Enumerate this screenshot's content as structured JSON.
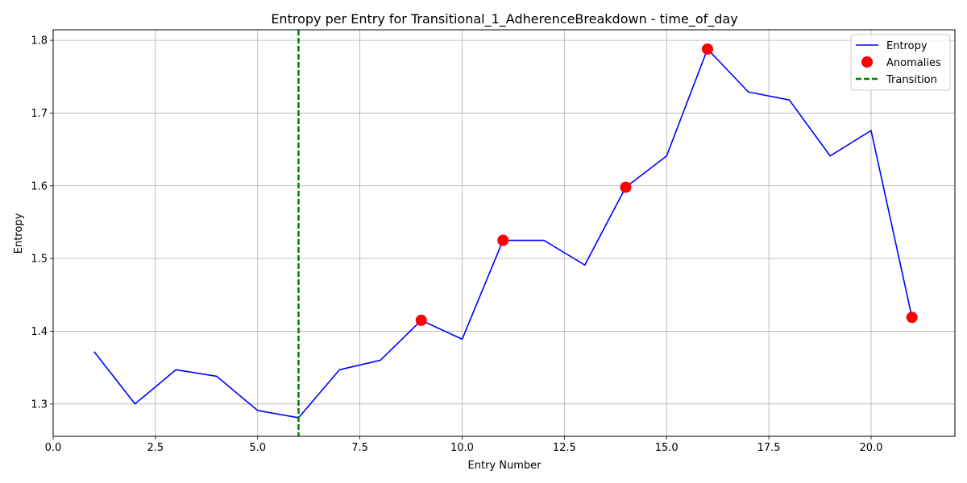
{
  "chart_data": {
    "type": "line",
    "title": "Entropy per Entry for Transitional_1_AdherenceBreakdown - time_of_day",
    "xlabel": "Entry Number",
    "ylabel": "Entropy",
    "xlim": [
      0,
      22.05
    ],
    "ylim": [
      1.2555,
      1.8145
    ],
    "xticks": [
      0.0,
      2.5,
      5.0,
      7.5,
      10.0,
      12.5,
      15.0,
      17.5,
      20.0
    ],
    "xtick_labels": [
      "0.0",
      "2.5",
      "5.0",
      "7.5",
      "10.0",
      "12.5",
      "15.0",
      "17.5",
      "20.0"
    ],
    "yticks": [
      1.3,
      1.4,
      1.5,
      1.6,
      1.7,
      1.8
    ],
    "ytick_labels": [
      "1.3",
      "1.4",
      "1.5",
      "1.6",
      "1.7",
      "1.8"
    ],
    "grid": true,
    "legend_position": "top-right",
    "series": [
      {
        "name": "Entropy",
        "kind": "line",
        "color": "#0000ff",
        "x": [
          1,
          2,
          3,
          4,
          5,
          6,
          7,
          8,
          9,
          10,
          11,
          12,
          13,
          14,
          15,
          16,
          17,
          18,
          19,
          20,
          21
        ],
        "y": [
          1.372,
          1.3,
          1.347,
          1.338,
          1.291,
          1.281,
          1.347,
          1.36,
          1.415,
          1.389,
          1.525,
          1.525,
          1.491,
          1.598,
          1.641,
          1.788,
          1.729,
          1.718,
          1.641,
          1.676,
          1.419
        ]
      },
      {
        "name": "Anomalies",
        "kind": "scatter",
        "color": "#ff0000",
        "x": [
          9,
          11,
          14,
          16,
          21
        ],
        "y": [
          1.415,
          1.525,
          1.598,
          1.788,
          1.419
        ]
      },
      {
        "name": "Transition",
        "kind": "vline",
        "color": "#008000",
        "x": 6
      }
    ]
  }
}
